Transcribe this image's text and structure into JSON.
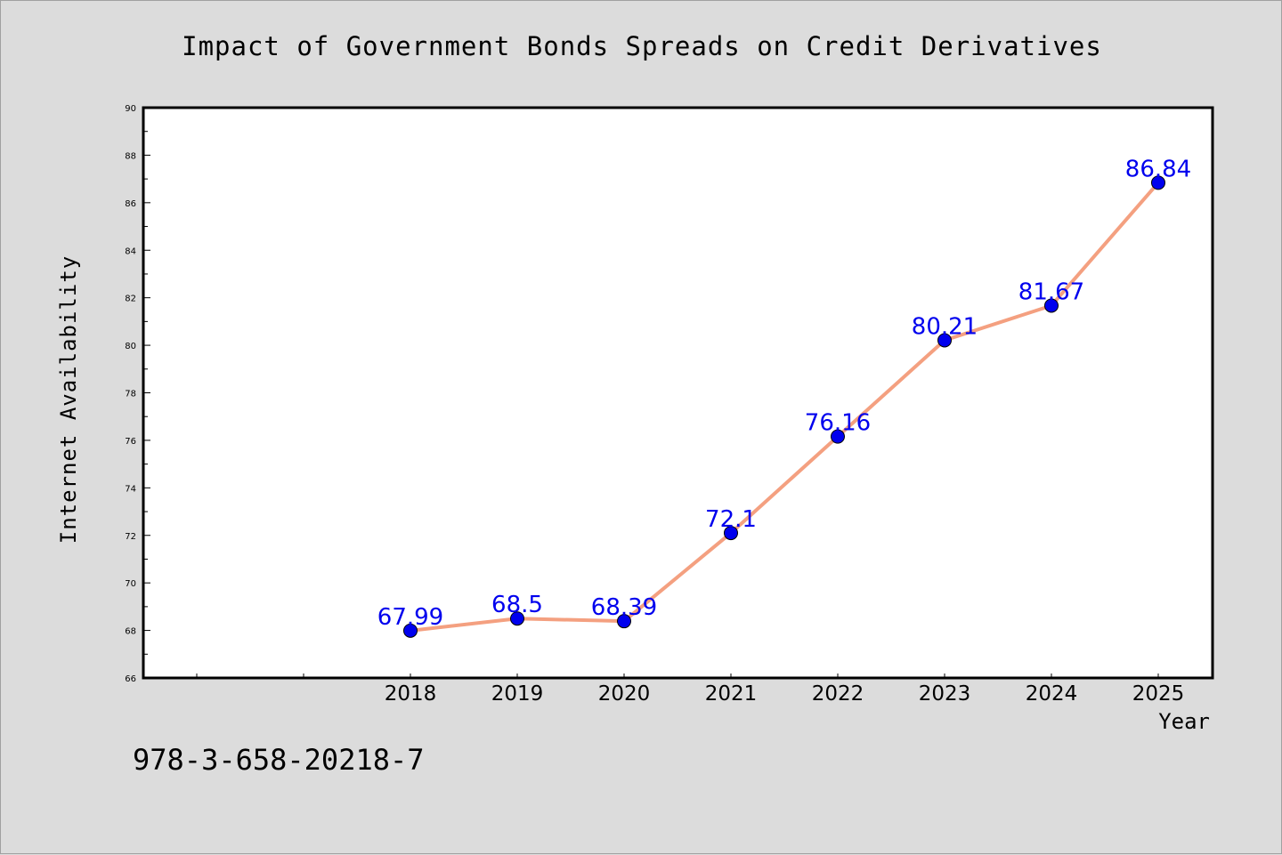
{
  "chart_data": {
    "type": "line",
    "title": "Impact of Government Bonds Spreads on Credit Derivatives",
    "xlabel": "Year",
    "ylabel": "Internet Availability",
    "x": [
      "2018",
      "2019",
      "2020",
      "2021",
      "2022",
      "2023",
      "2024",
      "2025"
    ],
    "series": [
      {
        "values": [
          67.99,
          68.5,
          68.39,
          72.1,
          76.16,
          80.21,
          81.67,
          86.84
        ],
        "data_labels": [
          "67.99",
          "68.5",
          "68.39",
          "72.1",
          "76.16",
          "80.21",
          "81.67",
          "86.84"
        ],
        "line_color": "#f4a080",
        "marker_color": "#0000ee"
      }
    ],
    "ylim": [
      66,
      90
    ],
    "yticks": [
      "66",
      "68",
      "70",
      "72",
      "74",
      "76",
      "78",
      "80",
      "82",
      "84",
      "86",
      "88",
      "90"
    ],
    "grid": false,
    "legend": "none"
  },
  "footer_text": "978-3-658-20218-7",
  "colors": {
    "figure_background": "#dcdcdc",
    "plot_background": "#ffffff",
    "label_color": "#0000ee"
  }
}
